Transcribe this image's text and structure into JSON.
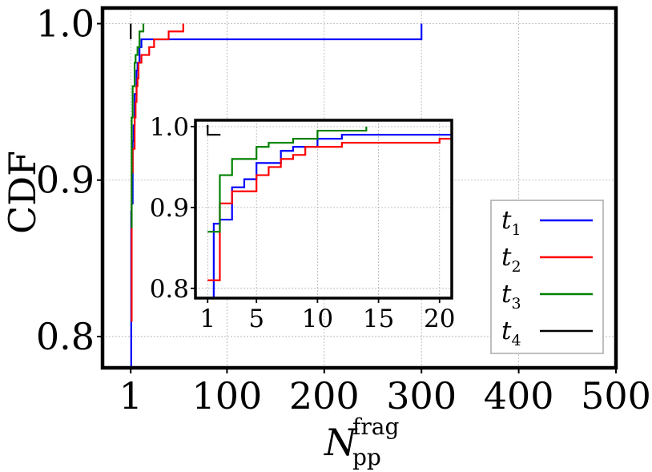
{
  "chart_data": {
    "type": "line",
    "subtype": "step-cdf",
    "ylabel": "CDF",
    "xlabel": {
      "base": "N",
      "sub": "pp",
      "sup": "frag"
    },
    "xlim": [
      -28,
      500
    ],
    "ylim": [
      0.78,
      1.01
    ],
    "xticks": [
      1,
      100,
      200,
      300,
      400,
      500
    ],
    "xtick_labels": [
      "1",
      "100",
      "200",
      "300",
      "400",
      "500"
    ],
    "yticks": [
      0.8,
      0.9,
      1.0
    ],
    "ytick_labels": [
      "0.8",
      "0.9",
      "1.0"
    ],
    "grid": true,
    "legend_position": "lower-right",
    "series": [
      {
        "name": "t1",
        "label_base": "t",
        "label_sub": "1",
        "color": "#0000ff",
        "points": [
          [
            1,
            0.78
          ],
          [
            1.5,
            0.88
          ],
          [
            2,
            0.885
          ],
          [
            3,
            0.925
          ],
          [
            4,
            0.935
          ],
          [
            5,
            0.955
          ],
          [
            6,
            0.955
          ],
          [
            7,
            0.97
          ],
          [
            8,
            0.975
          ],
          [
            9,
            0.975
          ],
          [
            10,
            0.985
          ],
          [
            12,
            0.99
          ],
          [
            20,
            0.99
          ],
          [
            300,
            0.99
          ],
          [
            300,
            1.0
          ]
        ]
      },
      {
        "name": "t2",
        "label_base": "t",
        "label_sub": "2",
        "color": "#ff0000",
        "points": [
          [
            1,
            0.81
          ],
          [
            2,
            0.905
          ],
          [
            3,
            0.92
          ],
          [
            5,
            0.94
          ],
          [
            6,
            0.95
          ],
          [
            7,
            0.96
          ],
          [
            8,
            0.965
          ],
          [
            9,
            0.975
          ],
          [
            10,
            0.975
          ],
          [
            12,
            0.98
          ],
          [
            15,
            0.98
          ],
          [
            20,
            0.985
          ],
          [
            25,
            0.99
          ],
          [
            40,
            0.995
          ],
          [
            55,
            1.0
          ]
        ]
      },
      {
        "name": "t3",
        "label_base": "t",
        "label_sub": "3",
        "color": "#008000",
        "points": [
          [
            1,
            0.87
          ],
          [
            1.5,
            0.87
          ],
          [
            2,
            0.94
          ],
          [
            3,
            0.96
          ],
          [
            5,
            0.975
          ],
          [
            6,
            0.98
          ],
          [
            8,
            0.985
          ],
          [
            10,
            0.995
          ],
          [
            14,
            1.0
          ],
          [
            14,
            1.0
          ]
        ]
      },
      {
        "name": "t4",
        "label_base": "t",
        "label_sub": "4",
        "color": "#000000",
        "points": [
          [
            1,
            0.99
          ],
          [
            1,
            1.0
          ]
        ]
      }
    ],
    "inset": {
      "xlim": [
        0,
        21
      ],
      "ylim": [
        0.78,
        1.0
      ],
      "xticks": [
        1,
        5,
        10,
        15,
        20
      ],
      "xtick_labels": [
        "1",
        "5",
        "10",
        "15",
        "20"
      ],
      "yticks": [
        0.8,
        0.9,
        1.0
      ],
      "ytick_labels": [
        "0.8",
        "0.9",
        "1.0"
      ],
      "grid": true
    }
  }
}
